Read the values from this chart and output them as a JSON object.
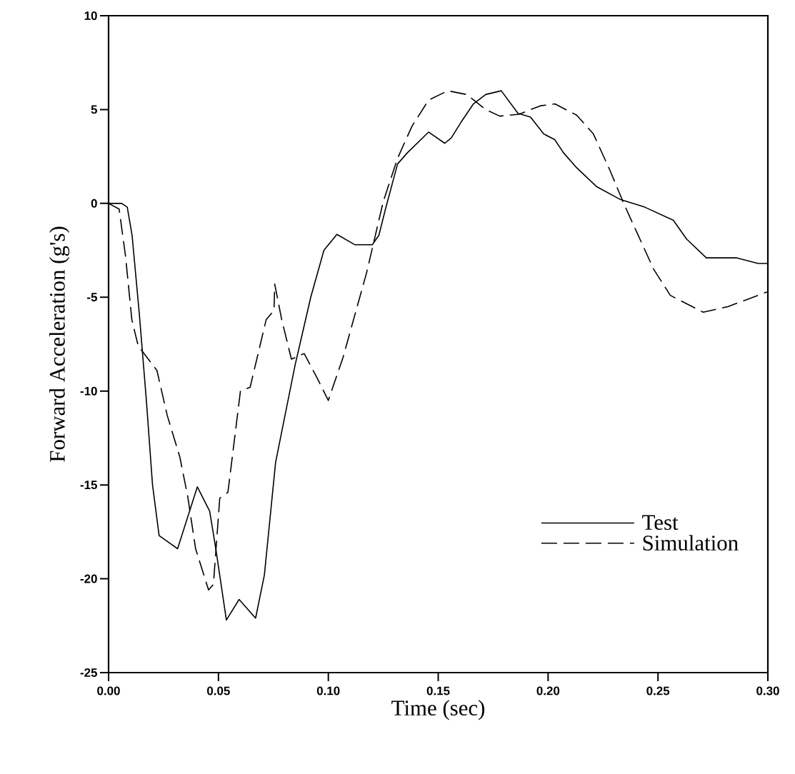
{
  "chart_data": {
    "type": "line",
    "xlabel": "Time (sec)",
    "ylabel": "Forward Acceleration (g's)",
    "xlim": [
      0,
      0.3
    ],
    "ylim": [
      -25,
      10
    ],
    "xticks": [
      {
        "value": 0,
        "label": "0.00"
      },
      {
        "value": 0.05,
        "label": "0.05"
      },
      {
        "value": 0.1,
        "label": "0.10"
      },
      {
        "value": 0.15,
        "label": "0.15"
      },
      {
        "value": 0.2,
        "label": "0.20"
      },
      {
        "value": 0.25,
        "label": "0.25"
      },
      {
        "value": 0.3,
        "label": "0.30"
      }
    ],
    "yticks": [
      -25,
      -20,
      -15,
      -10,
      -5,
      0,
      5,
      10
    ],
    "grid": false,
    "legend": "bottom right",
    "marker": "none",
    "series": [
      {
        "name": "Test",
        "color": "#000000",
        "line_style": "solid",
        "x": [
          0,
          0.006,
          0.0085,
          0.0107,
          0.014,
          0.0172,
          0.02,
          0.023,
          0.0314,
          0.0404,
          0.046,
          0.0488,
          0.0536,
          0.0594,
          0.0669,
          0.0709,
          0.076,
          0.0849,
          0.092,
          0.098,
          0.1039,
          0.112,
          0.12,
          0.123,
          0.126,
          0.1315,
          0.136,
          0.1456,
          0.153,
          0.156,
          0.1608,
          0.166,
          0.1716,
          0.1787,
          0.1863,
          0.192,
          0.198,
          0.203,
          0.207,
          0.213,
          0.222,
          0.233,
          0.244,
          0.257,
          0.263,
          0.272,
          0.2856,
          0.2956,
          0.3
        ],
        "values": [
          0,
          0,
          -0.2,
          -1.7,
          -5.9,
          -10.5,
          -15,
          -17.7,
          -18.4,
          -15.1,
          -16.4,
          -18.4,
          -22.2,
          -21.1,
          -22.1,
          -19.8,
          -13.8,
          -8.6,
          -5,
          -2.5,
          -1.65,
          -2.2,
          -2.2,
          -1.7,
          -0.3,
          2.1,
          2.7,
          3.8,
          3.2,
          3.5,
          4.4,
          5.3,
          5.8,
          6,
          4.8,
          4.6,
          3.7,
          3.4,
          2.7,
          1.9,
          0.9,
          0.2,
          -0.2,
          -0.9,
          -1.9,
          -2.9,
          -2.9,
          -3.2,
          -3.2
        ]
      },
      {
        "name": "Simulation",
        "color": "#000000",
        "line_style": "dashed",
        "x": [
          0,
          0.0048,
          0.0077,
          0.0106,
          0.0135,
          0.022,
          0.0267,
          0.0324,
          0.036,
          0.0396,
          0.0455,
          0.0477,
          0.0506,
          0.0543,
          0.06,
          0.0644,
          0.0717,
          0.0753,
          0.0756,
          0.0788,
          0.0832,
          0.089,
          0.0949,
          0.1,
          0.1067,
          0.1174,
          0.125,
          0.1315,
          0.138,
          0.1456,
          0.1543,
          0.163,
          0.1716,
          0.178,
          0.1868,
          0.1965,
          0.2031,
          0.213,
          0.2206,
          0.228,
          0.2344,
          0.2406,
          0.248,
          0.2556,
          0.2706,
          0.2818,
          0.2956,
          0.3
        ],
        "values": [
          0,
          -0.3,
          -2.8,
          -6.2,
          -7.6,
          -8.9,
          -11.3,
          -13.5,
          -15.6,
          -18.4,
          -20.6,
          -20.3,
          -15.7,
          -15.4,
          -10,
          -9.8,
          -6.2,
          -5.7,
          -4.3,
          -6.2,
          -8.3,
          -8,
          -9.3,
          -10.5,
          -8.2,
          -3.7,
          0.1,
          2.4,
          4.1,
          5.5,
          6,
          5.8,
          5,
          4.65,
          4.75,
          5.2,
          5.3,
          4.7,
          3.7,
          1.8,
          0,
          -1.6,
          -3.5,
          -4.9,
          -5.8,
          -5.5,
          -4.9,
          -4.7
        ]
      }
    ]
  }
}
